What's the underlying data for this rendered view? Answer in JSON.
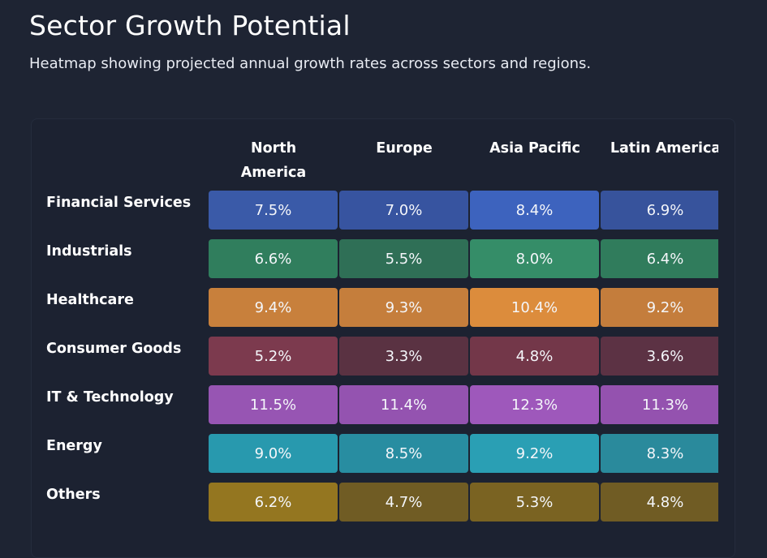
{
  "title": "Sector Growth Potential",
  "subtitle": "Heatmap showing projected annual growth rates across sectors and regions.",
  "chart_data": {
    "type": "heatmap",
    "title": "Sector Growth Potential",
    "subtitle": "Heatmap showing projected annual growth rates across sectors and regions.",
    "columns": [
      "North America",
      "Europe",
      "Asia Pacific",
      "Latin America"
    ],
    "rows": [
      {
        "name": "Financial Services",
        "values": [
          7.5,
          7.0,
          8.4,
          6.9
        ],
        "labels": [
          "7.5%",
          "7.0%",
          "8.4%",
          "6.9%"
        ],
        "colors": [
          "#3a5aa8",
          "#3754a0",
          "#3d63be",
          "#37539c"
        ]
      },
      {
        "name": "Industrials",
        "values": [
          6.6,
          5.5,
          8.0,
          6.4
        ],
        "labels": [
          "6.6%",
          "5.5%",
          "8.0%",
          "6.4%"
        ],
        "colors": [
          "#307e5d",
          "#2f6f56",
          "#358d68",
          "#307c5c"
        ]
      },
      {
        "name": "Healthcare",
        "values": [
          9.4,
          9.3,
          10.4,
          9.2
        ],
        "labels": [
          "9.4%",
          "9.3%",
          "10.4%",
          "9.2%"
        ],
        "colors": [
          "#c8803c",
          "#c57e3c",
          "#dc8c3c",
          "#c47d3c"
        ]
      },
      {
        "name": "Consumer Goods",
        "values": [
          5.2,
          3.3,
          4.8,
          3.6
        ],
        "labels": [
          "5.2%",
          "3.3%",
          "4.8%",
          "3.6%"
        ],
        "colors": [
          "#7c3a4e",
          "#5a3242",
          "#733749",
          "#5c3244"
        ]
      },
      {
        "name": "IT & Technology",
        "values": [
          11.5,
          11.4,
          12.3,
          11.3
        ],
        "labels": [
          "11.5%",
          "11.4%",
          "12.3%",
          "11.3%"
        ],
        "colors": [
          "#9755b3",
          "#9453b0",
          "#9e58bb",
          "#9452af"
        ]
      },
      {
        "name": "Energy",
        "values": [
          9.0,
          8.5,
          9.2,
          8.3
        ],
        "labels": [
          "9.0%",
          "8.5%",
          "9.2%",
          "8.3%"
        ],
        "colors": [
          "#2899ae",
          "#288da1",
          "#2a9fb4",
          "#2a8a9c"
        ]
      },
      {
        "name": "Others",
        "values": [
          6.2,
          4.7,
          5.3,
          4.8
        ],
        "labels": [
          "6.2%",
          "4.7%",
          "5.3%",
          "4.8%"
        ],
        "colors": [
          "#947620",
          "#705c24",
          "#7a6322",
          "#705c24"
        ]
      }
    ]
  }
}
